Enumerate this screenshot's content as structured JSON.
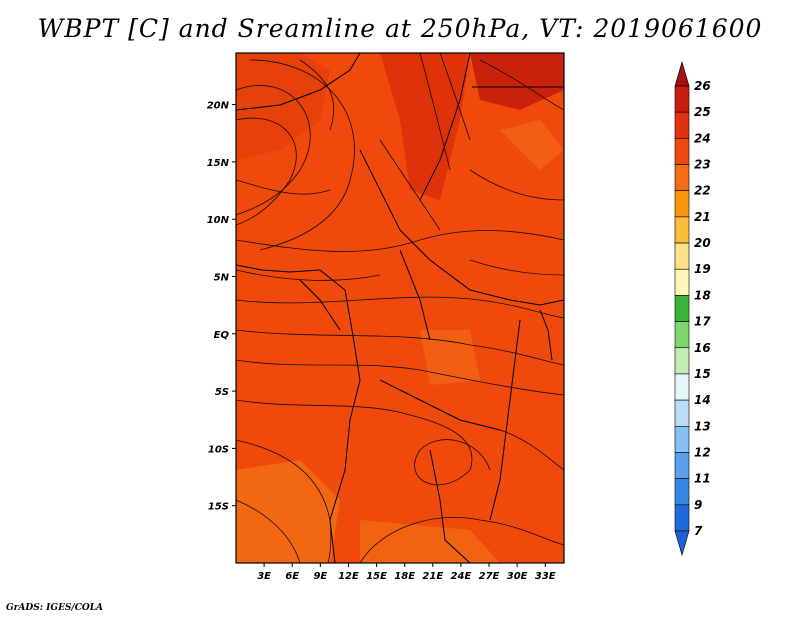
{
  "title": "WBPT [C] and Sreamline at 250hPa, VT: 2019061600",
  "footer": "GrADS: IGES/COLA",
  "map": {
    "lat_labels": [
      "20N",
      "15N",
      "10N",
      "5N",
      "EQ",
      "5S",
      "10S",
      "15S"
    ],
    "lat_values": [
      20,
      15,
      10,
      5,
      0,
      -5,
      -10,
      -15
    ],
    "lon_labels": [
      "3E",
      "6E",
      "9E",
      "12E",
      "15E",
      "18E",
      "21E",
      "24E",
      "27E",
      "30E",
      "33E"
    ],
    "lon_values": [
      3,
      6,
      9,
      12,
      15,
      18,
      21,
      24,
      27,
      30,
      33
    ],
    "lat_range": [
      -20,
      24.5
    ],
    "lon_range": [
      0,
      35
    ],
    "fill_colors": {
      "main": "#ef4a0c",
      "darker": "#db2c0a",
      "orange": "#f26d14",
      "darkest": "#c11c0a",
      "coast": "#000000",
      "stream": "#1b0b06"
    }
  },
  "colorbar": {
    "levels": [
      "26",
      "25",
      "24",
      "23",
      "22",
      "21",
      "20",
      "19",
      "18",
      "17",
      "16",
      "15",
      "14",
      "13",
      "12",
      "11",
      "9",
      "7"
    ],
    "colors": [
      "#a50f0f",
      "#c81e0f",
      "#e0320e",
      "#ef4a0c",
      "#f26d14",
      "#f8950f",
      "#fbbc3c",
      "#fde08a",
      "#fff6b8",
      "#3ab43a",
      "#7fd46a",
      "#c2ecb4",
      "#e6f7f8",
      "#b9dcf8",
      "#86c0f4",
      "#5aa1ec",
      "#3a86e6",
      "#2069dc"
    ],
    "bottom_color": "#1f5fd6",
    "top_color": "#a50f0f"
  }
}
